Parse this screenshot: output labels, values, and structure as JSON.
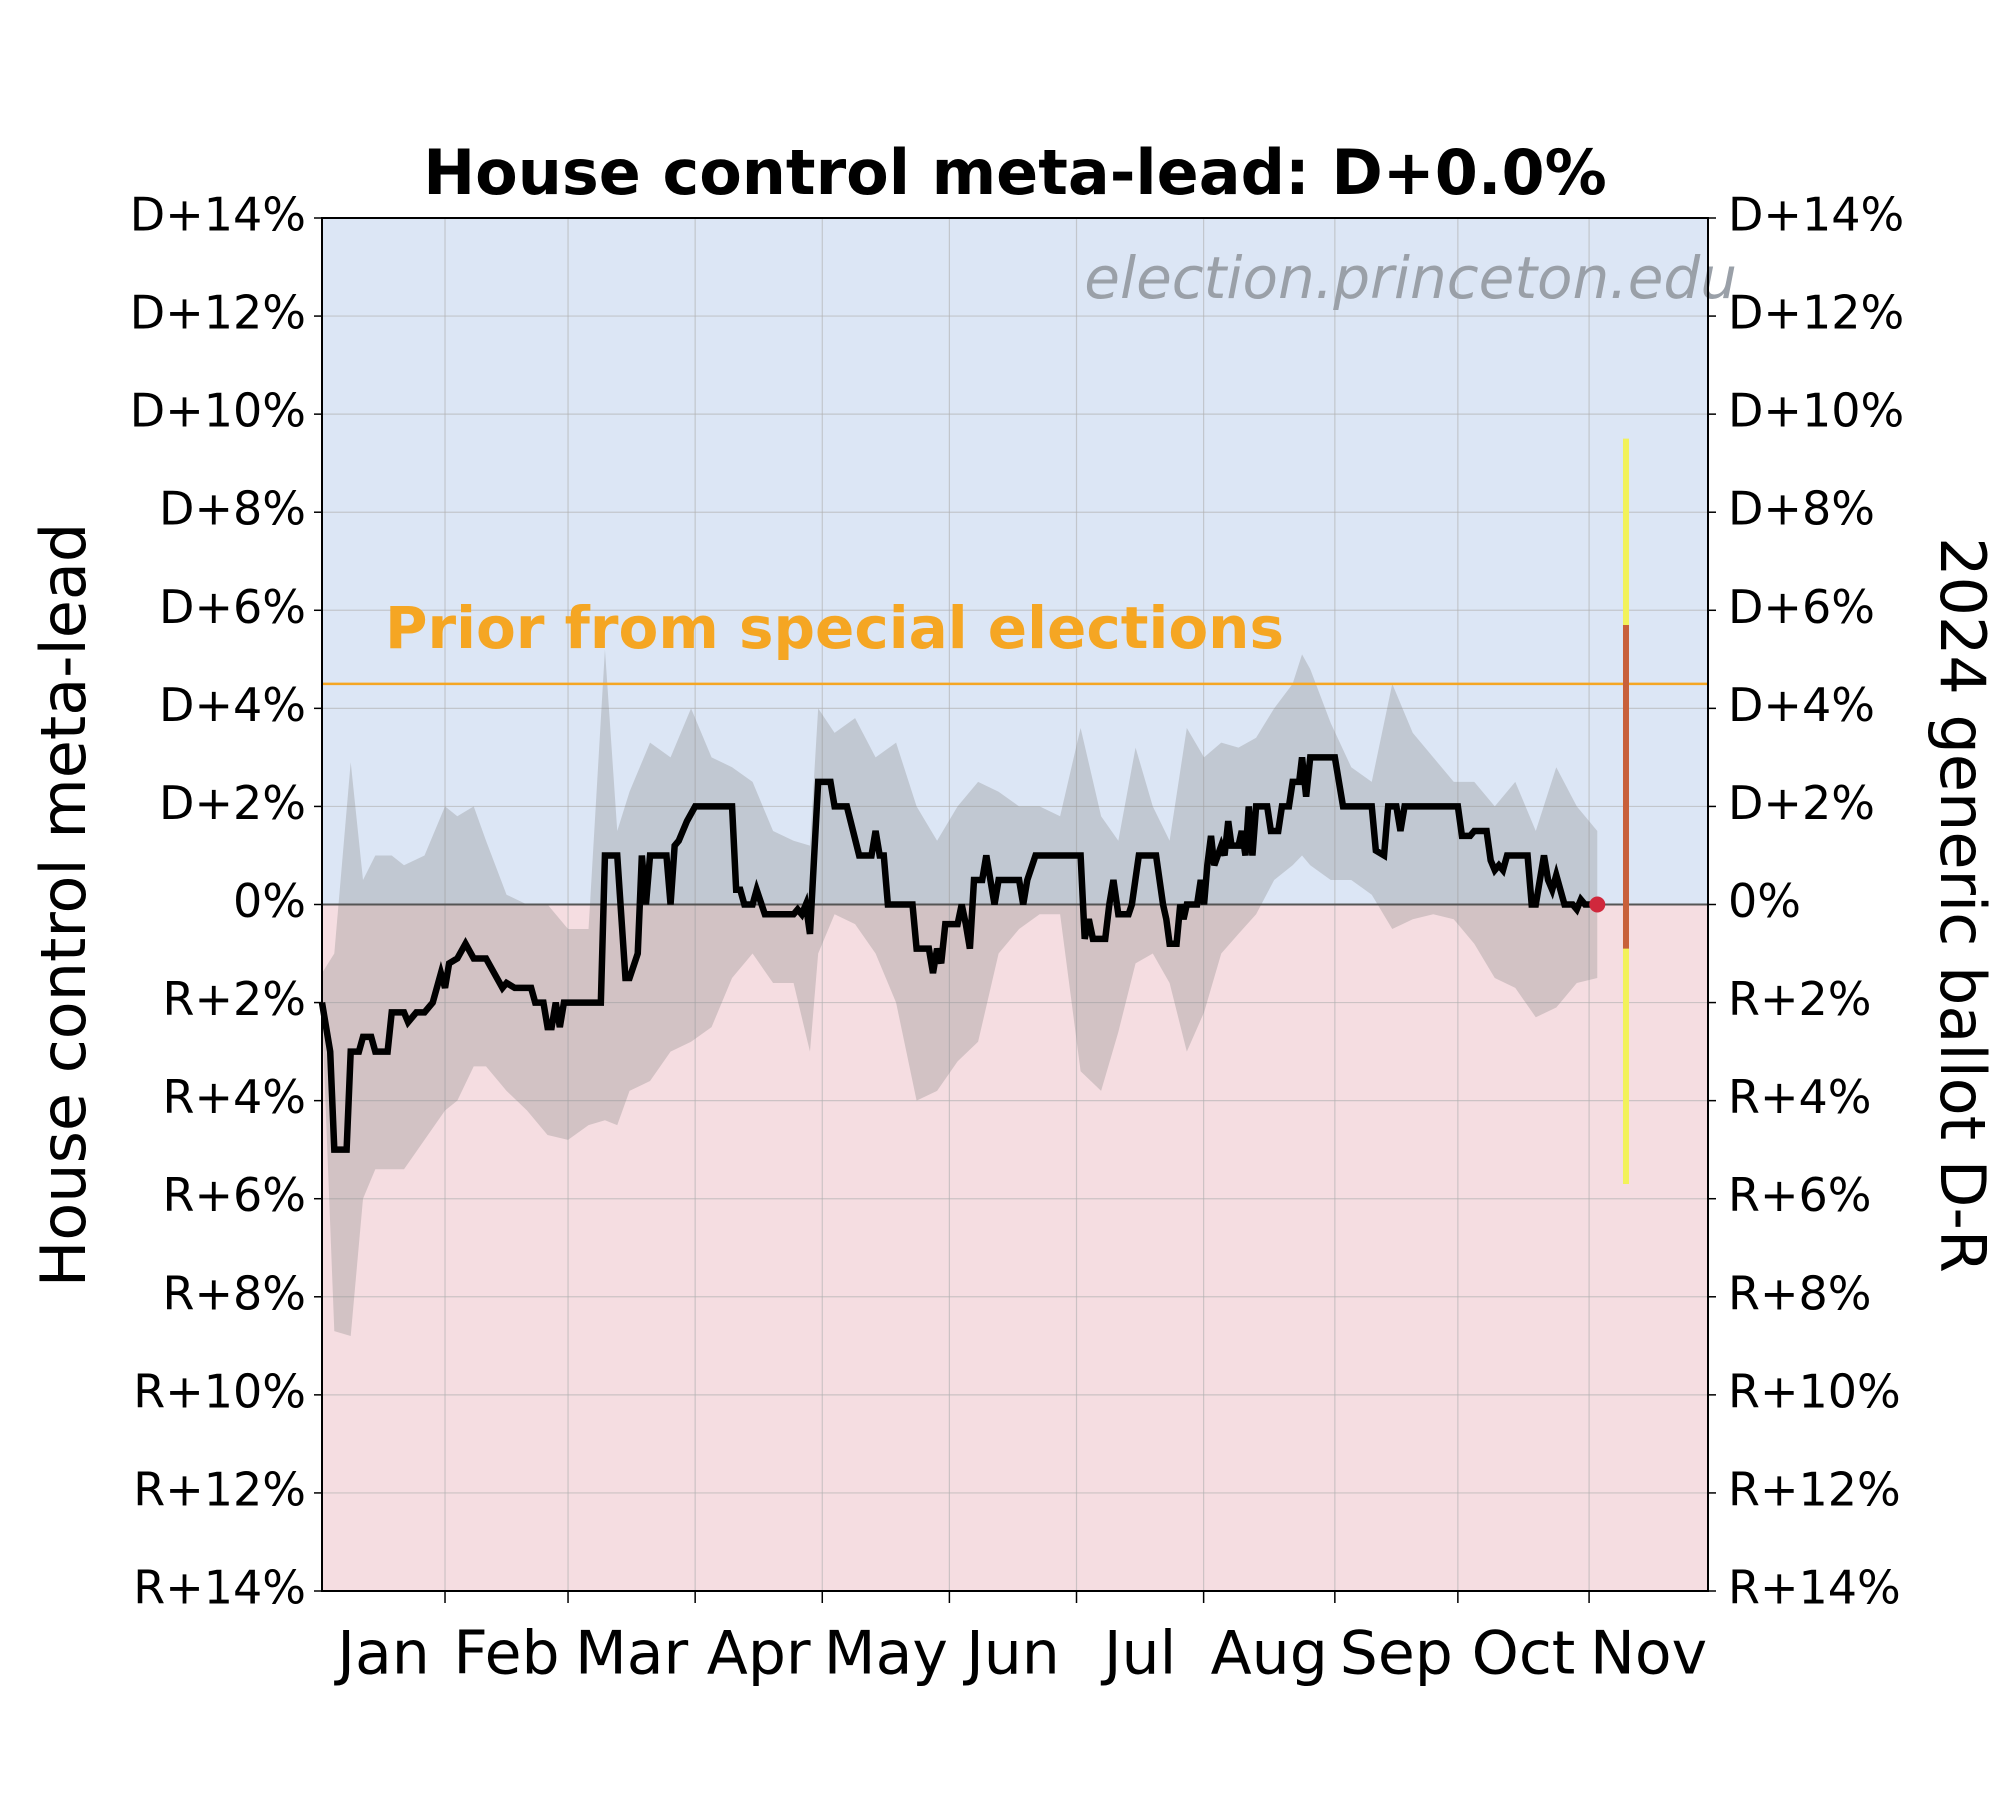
{
  "chart_data": {
    "type": "line",
    "title": "House control meta-lead: D+0.0%",
    "watermark": "election.princeton.edu",
    "ylabel": "House control meta-lead",
    "y2label": "2024 generic ballot D-R",
    "xlim": [
      0,
      338
    ],
    "xticks": [
      30,
      60,
      91,
      122,
      153,
      184,
      215,
      247,
      277,
      309
    ],
    "month_labels": [
      "Jan",
      "Feb",
      "Mar",
      "Apr",
      "May",
      "Jun",
      "Jul",
      "Aug",
      "Sep",
      "Oct",
      "Nov"
    ],
    "ylim": [
      -14,
      14
    ],
    "yticks": [
      {
        "value": -14,
        "label": "R+14%"
      },
      {
        "value": -12,
        "label": "R+12%"
      },
      {
        "value": -10,
        "label": "R+10%"
      },
      {
        "value": -8,
        "label": "R+8%"
      },
      {
        "value": -6,
        "label": "R+6%"
      },
      {
        "value": -4,
        "label": "R+4%"
      },
      {
        "value": -2,
        "label": "R+2%"
      },
      {
        "value": 0,
        "label": "0%"
      },
      {
        "value": 2,
        "label": "D+2%"
      },
      {
        "value": 4,
        "label": "D+4%"
      },
      {
        "value": 6,
        "label": "D+6%"
      },
      {
        "value": 8,
        "label": "D+8%"
      },
      {
        "value": 10,
        "label": "D+10%"
      },
      {
        "value": 12,
        "label": "D+12%"
      },
      {
        "value": 14,
        "label": "D+14%"
      }
    ],
    "y2lim": [
      -14,
      14
    ],
    "y2ticks": [
      {
        "value": -14,
        "label": "R+14%"
      },
      {
        "value": -12,
        "label": "R+12%"
      },
      {
        "value": -10,
        "label": "R+10%"
      },
      {
        "value": -8,
        "label": "R+8%"
      },
      {
        "value": -6,
        "label": "R+6%"
      },
      {
        "value": -4,
        "label": "R+4%"
      },
      {
        "value": -2,
        "label": "R+2%"
      },
      {
        "value": 0,
        "label": "0%"
      },
      {
        "value": 2,
        "label": "D+2%"
      },
      {
        "value": 4,
        "label": "D+4%"
      },
      {
        "value": 6,
        "label": "D+6%"
      },
      {
        "value": 8,
        "label": "D+8%"
      },
      {
        "value": 10,
        "label": "D+10%"
      },
      {
        "value": 12,
        "label": "D+12%"
      },
      {
        "value": 14,
        "label": "D+14%"
      }
    ],
    "grid": true,
    "positive_color": "#dce6f5",
    "negative_color": "#f5dde1",
    "prior": {
      "value": 4.5,
      "label": "Prior from special elections",
      "color": "#f5a623"
    },
    "series": [
      {
        "color": "#000000",
        "x": [
          0,
          2,
          3,
          6,
          7,
          9,
          10,
          12,
          13,
          16,
          17,
          20,
          21,
          23,
          25,
          27,
          29,
          30,
          31,
          33,
          35,
          37,
          40,
          42,
          44,
          45,
          47,
          51,
          52,
          54,
          55,
          56,
          57,
          58,
          59,
          68,
          69,
          72,
          74,
          75,
          77,
          78,
          79,
          80,
          84,
          85,
          86,
          87,
          89,
          91,
          100,
          101,
          102,
          103,
          105,
          106,
          108,
          115,
          116,
          117,
          118,
          119,
          121,
          124,
          125,
          128,
          131,
          134,
          135,
          136,
          137,
          138,
          144,
          145,
          148,
          149,
          150,
          151,
          152,
          155,
          156,
          157,
          158,
          159,
          161,
          162,
          163,
          164,
          165,
          170,
          171,
          172,
          174,
          185,
          186,
          187,
          188,
          191,
          192,
          193,
          194.2,
          196.7,
          197.5,
          199.2,
          203.4,
          205.1,
          205.9,
          206.7,
          208.4,
          209.3,
          210.1,
          210.9,
          213.4,
          214.3,
          215.1,
          215.9,
          216.8,
          217.6,
          219.3,
          220.1,
          221,
          221.8,
          223.5,
          224.3,
          225.2,
          226,
          226.9,
          227.8,
          230.5,
          231.4,
          233.2,
          234.1,
          235.8,
          236.7,
          238.3,
          239,
          240,
          241,
          247,
          249,
          256,
          257,
          259,
          260,
          262,
          263,
          264,
          277,
          278,
          280,
          281,
          284,
          285,
          286,
          287,
          288,
          289,
          294,
          295,
          296,
          298,
          299,
          300,
          301,
          303,
          305,
          306,
          307,
          308,
          311
        ],
        "values": [
          -2,
          -3,
          -5,
          -5,
          -3,
          -3,
          -2.7,
          -2.7,
          -3,
          -3,
          -2.2,
          -2.2,
          -2.4,
          -2.2,
          -2.2,
          -2,
          -1.4,
          -1.7,
          -1.2,
          -1.1,
          -0.8,
          -1.1,
          -1.1,
          -1.4,
          -1.7,
          -1.6,
          -1.7,
          -1.7,
          -2,
          -2,
          -2.5,
          -2.5,
          -2,
          -2.5,
          -2,
          -2,
          1,
          1,
          -1.5,
          -1.5,
          -1,
          1,
          0,
          1,
          1,
          0,
          1.2,
          1.3,
          1.7,
          2,
          2,
          0.3,
          0.3,
          0,
          0,
          0.3,
          -0.2,
          -0.2,
          -0.1,
          -0.2,
          0,
          -0.6,
          2.5,
          2.5,
          2,
          2,
          1,
          1,
          1.5,
          1,
          1,
          0,
          0,
          -0.9,
          -0.9,
          -1.4,
          -0.9,
          -1.2,
          -0.4,
          -0.4,
          0,
          -0.4,
          -0.9,
          0.5,
          0.5,
          1,
          0.5,
          0,
          0.5,
          0.5,
          0,
          0.5,
          1,
          1,
          -0.7,
          -0.3,
          -0.7,
          -0.7,
          0,
          0.5,
          -0.2,
          -0.2,
          0,
          1,
          1,
          0,
          -0.3,
          -0.8,
          -0.8,
          0,
          -0.3,
          0,
          0,
          0.5,
          0,
          0.8,
          1.4,
          0.8,
          1.2,
          1,
          1.7,
          1.2,
          1.2,
          1.5,
          1,
          2,
          1,
          2,
          2,
          1.5,
          1.5,
          2,
          2,
          2.5,
          2.5,
          3,
          2.2,
          3,
          3,
          2,
          2,
          1.1,
          1,
          2,
          2,
          1.5,
          2,
          2,
          1.4,
          1.4,
          1.5,
          1.5,
          0.9,
          0.7,
          0.8,
          0.7,
          1,
          1,
          0,
          0,
          1,
          0.5,
          0.3,
          0.6,
          0,
          0,
          -0.1,
          0.1,
          0,
          0
        ]
      }
    ],
    "endpoint_color": "#d0283c",
    "band": {
      "color": "#8a8a8a",
      "x": [
        0,
        3,
        7,
        10,
        13,
        17,
        20,
        25,
        30,
        33,
        37,
        40,
        45,
        50,
        55,
        60,
        65,
        69,
        72,
        75,
        80,
        85,
        90,
        95,
        100,
        105,
        110,
        115,
        119,
        121,
        125,
        130,
        135,
        140,
        145,
        150,
        155,
        160,
        165,
        170,
        175,
        180,
        185,
        190,
        194.2,
        198.4,
        202.6,
        206.7,
        210.9,
        215.1,
        219.3,
        223.5,
        227.8,
        232.2,
        236.7,
        239,
        241,
        246,
        251,
        256,
        261,
        266,
        271,
        276,
        281,
        286,
        291,
        296,
        301,
        306,
        311
      ],
      "upper": [
        -1.4,
        -1.0,
        2.9,
        0.5,
        1.0,
        1.0,
        0.8,
        1.0,
        2.0,
        1.8,
        2.0,
        1.3,
        0.2,
        0,
        0,
        -0.5,
        -0.5,
        5.2,
        1.5,
        2.3,
        3.3,
        3.0,
        4.0,
        3.0,
        2.8,
        2.5,
        1.5,
        1.3,
        1.2,
        4.0,
        3.5,
        3.8,
        3.0,
        3.3,
        2.0,
        1.3,
        2.0,
        2.5,
        2.3,
        2.0,
        2.0,
        1.8,
        3.6,
        1.8,
        1.3,
        3.2,
        2.0,
        1.3,
        3.6,
        3.0,
        3.3,
        3.2,
        3.4,
        4.0,
        4.5,
        5.1,
        4.8,
        3.7,
        2.8,
        2.5,
        4.5,
        3.5,
        3.0,
        2.5,
        2.5,
        2.0,
        2.5,
        1.5,
        2.8,
        2.0,
        1.5
      ],
      "lower": [
        -2.2,
        -8.7,
        -8.8,
        -6.0,
        -5.4,
        -5.4,
        -5.4,
        -4.8,
        -4.2,
        -4.0,
        -3.3,
        -3.3,
        -3.8,
        -4.2,
        -4.7,
        -4.8,
        -4.5,
        -4.4,
        -4.5,
        -3.8,
        -3.6,
        -3.0,
        -2.8,
        -2.5,
        -1.5,
        -1.0,
        -1.6,
        -1.6,
        -3.0,
        -1.0,
        -0.2,
        -0.4,
        -1.0,
        -2.0,
        -4.0,
        -3.8,
        -3.2,
        -2.8,
        -1.0,
        -0.5,
        -0.2,
        -0.2,
        -3.4,
        -3.8,
        -2.6,
        -1.2,
        -1.0,
        -1.6,
        -3.0,
        -2.2,
        -1.0,
        -0.6,
        -0.2,
        0.5,
        0.8,
        1.0,
        0.8,
        0.5,
        0.5,
        0.2,
        -0.5,
        -0.3,
        -0.2,
        -0.3,
        -0.8,
        -1.5,
        -1.7,
        -2.3,
        -2.1,
        -1.6,
        -1.5
      ]
    },
    "ballot_interval": {
      "x": 318,
      "outer": [
        -5.7,
        9.5
      ],
      "inner": [
        -0.9,
        5.7
      ],
      "outer_color": "#f2f25a",
      "inner_color": "#c8603a"
    }
  }
}
